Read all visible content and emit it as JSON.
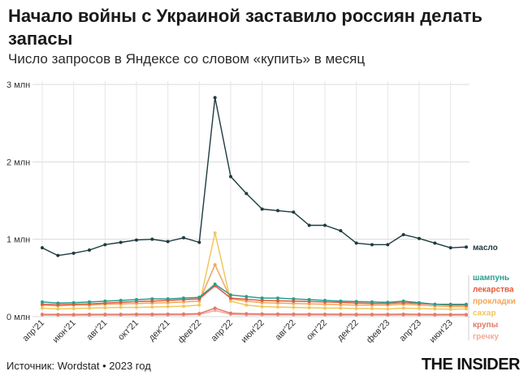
{
  "title": "Начало войны с Украиной заставило россиян делать запасы",
  "subtitle": "Число запросов в Яндексе со словом «купить» в месяц",
  "footer": {
    "source": "Источник: Wordstat • 2023 год",
    "brand": "THE INSIDER"
  },
  "chart_data": {
    "type": "line",
    "ylim": [
      0,
      3000000
    ],
    "yticks": [
      {
        "value": 0,
        "label": "0 млн"
      },
      {
        "value": 1000000,
        "label": "1 млн"
      },
      {
        "value": 2000000,
        "label": "2 млн"
      },
      {
        "value": 3000000,
        "label": "3 млн"
      }
    ],
    "x": [
      "2021-04",
      "2021-05",
      "2021-06",
      "2021-07",
      "2021-08",
      "2021-09",
      "2021-10",
      "2021-11",
      "2021-12",
      "2022-01",
      "2022-02",
      "2022-03",
      "2022-04",
      "2022-05",
      "2022-06",
      "2022-07",
      "2022-08",
      "2022-09",
      "2022-10",
      "2022-11",
      "2022-12",
      "2023-01",
      "2023-02",
      "2023-03",
      "2023-04",
      "2023-05",
      "2023-06",
      "2023-07"
    ],
    "xticks": [
      {
        "index": 0,
        "label": "апр'21"
      },
      {
        "index": 2,
        "label": "июн'21"
      },
      {
        "index": 4,
        "label": "авг'21"
      },
      {
        "index": 6,
        "label": "окт'21"
      },
      {
        "index": 8,
        "label": "дек'21"
      },
      {
        "index": 10,
        "label": "фев'22"
      },
      {
        "index": 12,
        "label": "апр'22"
      },
      {
        "index": 14,
        "label": "июн'22"
      },
      {
        "index": 16,
        "label": "авг'22"
      },
      {
        "index": 18,
        "label": "окт'22"
      },
      {
        "index": 20,
        "label": "дек'22"
      },
      {
        "index": 22,
        "label": "фев'23"
      },
      {
        "index": 24,
        "label": "апр'23"
      },
      {
        "index": 26,
        "label": "июн'23"
      }
    ],
    "series": [
      {
        "name": "масло",
        "color": "#1f3b3e",
        "values": [
          890000,
          790000,
          820000,
          860000,
          930000,
          960000,
          990000,
          1000000,
          970000,
          1020000,
          960000,
          2830000,
          1810000,
          1590000,
          1390000,
          1370000,
          1350000,
          1180000,
          1180000,
          1110000,
          950000,
          930000,
          930000,
          1060000,
          1010000,
          950000,
          890000,
          900000
        ]
      },
      {
        "name": "шампунь",
        "color": "#2a9d8f",
        "values": [
          190000,
          175000,
          180000,
          190000,
          200000,
          210000,
          220000,
          230000,
          230000,
          240000,
          250000,
          420000,
          280000,
          260000,
          240000,
          240000,
          230000,
          220000,
          210000,
          200000,
          195000,
          190000,
          185000,
          200000,
          180000,
          160000,
          160000,
          160000
        ]
      },
      {
        "name": "лекарства",
        "color": "#e05a3a",
        "values": [
          160000,
          155000,
          160000,
          165000,
          175000,
          185000,
          195000,
          200000,
          210000,
          220000,
          230000,
          400000,
          240000,
          225000,
          210000,
          205000,
          200000,
          195000,
          190000,
          185000,
          175000,
          170000,
          170000,
          180000,
          170000,
          160000,
          150000,
          150000
        ]
      },
      {
        "name": "прокладки",
        "color": "#f2a65a",
        "values": [
          150000,
          140000,
          150000,
          150000,
          160000,
          165000,
          170000,
          175000,
          180000,
          190000,
          200000,
          670000,
          230000,
          200000,
          180000,
          175000,
          170000,
          165000,
          160000,
          155000,
          150000,
          150000,
          150000,
          160000,
          150000,
          140000,
          130000,
          130000
        ]
      },
      {
        "name": "сахар",
        "color": "#f0c75e",
        "values": [
          110000,
          100000,
          105000,
          110000,
          115000,
          120000,
          120000,
          125000,
          130000,
          135000,
          150000,
          1080000,
          200000,
          150000,
          130000,
          125000,
          120000,
          115000,
          110000,
          110000,
          105000,
          105000,
          100000,
          110000,
          105000,
          100000,
          95000,
          100000
        ]
      },
      {
        "name": "крупы",
        "color": "#e07a6a",
        "values": [
          30000,
          28000,
          28000,
          30000,
          30000,
          30000,
          32000,
          32000,
          33000,
          34000,
          40000,
          110000,
          45000,
          38000,
          35000,
          34000,
          33000,
          32000,
          32000,
          31000,
          30000,
          30000,
          30000,
          32000,
          30000,
          29000,
          28000,
          28000
        ]
      },
      {
        "name": "гречку",
        "color": "#f4a89a",
        "values": [
          20000,
          18000,
          18000,
          19000,
          20000,
          20000,
          21000,
          21000,
          22000,
          22000,
          28000,
          80000,
          30000,
          25000,
          23000,
          22000,
          22000,
          21000,
          21000,
          20000,
          20000,
          20000,
          19000,
          21000,
          20000,
          19000,
          18000,
          18000
        ]
      }
    ]
  }
}
